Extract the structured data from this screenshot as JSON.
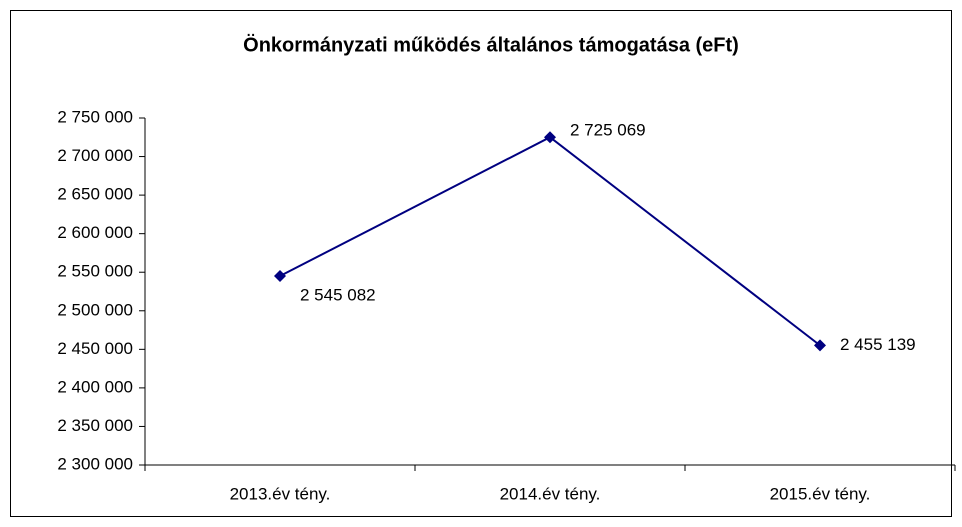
{
  "chart_data": {
    "type": "line",
    "title": "Önkormányzati működés általános támogatása (eFt)",
    "categories": [
      "2013.év tény.",
      "2014.év tény.",
      "2015.év tény."
    ],
    "values": [
      2545082,
      2725069,
      2455139
    ],
    "value_labels": [
      "2 545 082",
      "2 725 069",
      "2 455 139"
    ],
    "color": "#000080",
    "ylim": [
      2300000,
      2750000
    ],
    "yticks": [
      {
        "value": 2300000,
        "label": "2 300 000"
      },
      {
        "value": 2350000,
        "label": "2 350 000"
      },
      {
        "value": 2400000,
        "label": "2 400 000"
      },
      {
        "value": 2450000,
        "label": "2 450 000"
      },
      {
        "value": 2500000,
        "label": "2 500 000"
      },
      {
        "value": 2550000,
        "label": "2 550 000"
      },
      {
        "value": 2600000,
        "label": "2 600 000"
      },
      {
        "value": 2650000,
        "label": "2 650 000"
      },
      {
        "value": 2700000,
        "label": "2 700 000"
      },
      {
        "value": 2750000,
        "label": "2 750 000"
      }
    ],
    "grid": false
  }
}
